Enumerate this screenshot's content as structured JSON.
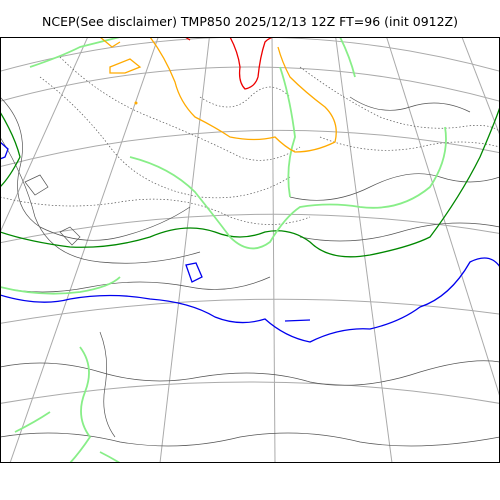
{
  "title": "NCEP(See disclaimer) TMP850 2025/12/13 12Z FT=96 (init 0912Z)",
  "colors": {
    "background": "#ffffff",
    "graticule": "#aaaaaa",
    "contour": "#555555",
    "isotherm_0": "#0000ee",
    "isotherm_warm1": "#008800",
    "isotherm_warm2": "#88ee88",
    "isotherm_warm3": "#ffaa00",
    "isotherm_warm4": "#ee0000"
  }
}
